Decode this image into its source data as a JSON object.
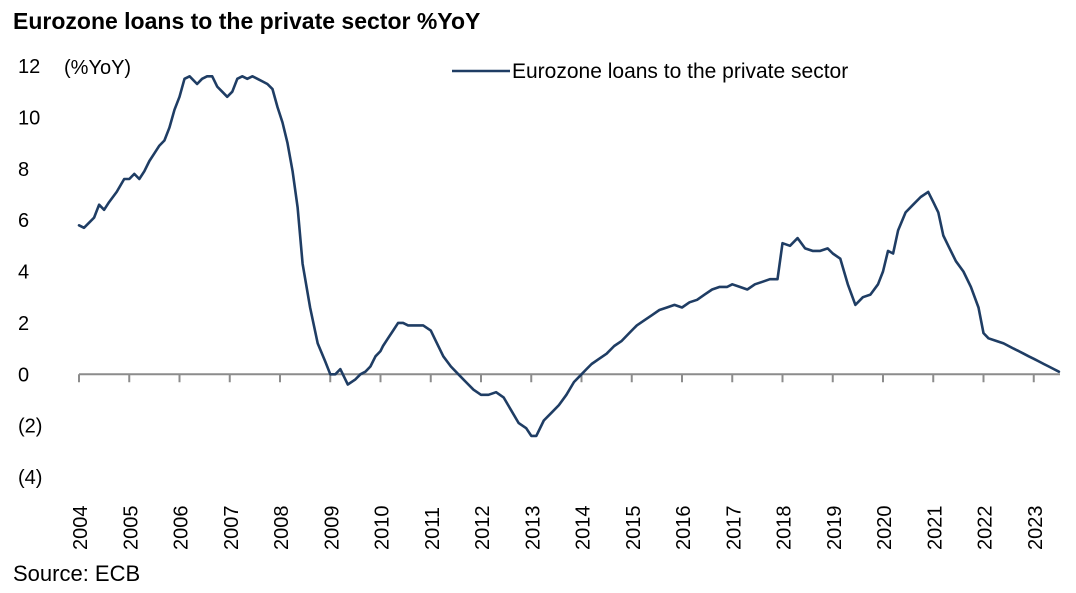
{
  "title": "Eurozone loans to the private sector %YoY",
  "source": "Source: ECB",
  "colors": {
    "series": "#1f3d64",
    "axis": "#8c8c8c"
  },
  "chart_data": {
    "type": "line",
    "title": "Eurozone loans to the private sector %YoY",
    "ylabel": "(%YoY)",
    "xlabel": "",
    "ylim": [
      -4,
      12
    ],
    "y_ticks": [
      12,
      10,
      8,
      6,
      4,
      2,
      0,
      -2,
      -4
    ],
    "y_tick_labels": [
      "12",
      "10",
      "8",
      "6",
      "4",
      "2",
      "0",
      "(2)",
      "(4)"
    ],
    "x_tick_labels": [
      "2004",
      "2005",
      "2006",
      "2007",
      "2008",
      "2009",
      "2010",
      "2011",
      "2012",
      "2013",
      "2014",
      "2015",
      "2016",
      "2017",
      "2018",
      "2019",
      "2020",
      "2021",
      "2022",
      "2023"
    ],
    "xlim": [
      2004.0,
      2023.6
    ],
    "legend_position": "top-right",
    "grid": false,
    "series": [
      {
        "name": "Eurozone loans to the private sector",
        "x": [
          2004.0,
          2004.1,
          2004.2,
          2004.3,
          2004.4,
          2004.5,
          2004.6,
          2004.75,
          2004.9,
          2005.0,
          2005.1,
          2005.2,
          2005.3,
          2005.4,
          2005.5,
          2005.6,
          2005.7,
          2005.8,
          2005.9,
          2006.0,
          2006.1,
          2006.2,
          2006.35,
          2006.45,
          2006.55,
          2006.65,
          2006.75,
          2006.85,
          2006.95,
          2007.05,
          2007.15,
          2007.25,
          2007.35,
          2007.45,
          2007.55,
          2007.65,
          2007.75,
          2007.85,
          2007.95,
          2008.05,
          2008.15,
          2008.25,
          2008.35,
          2008.45,
          2008.6,
          2008.75,
          2008.9,
          2009.0,
          2009.1,
          2009.2,
          2009.35,
          2009.5,
          2009.6,
          2009.7,
          2009.8,
          2009.9,
          2010.0,
          2010.05,
          2010.15,
          2010.25,
          2010.35,
          2010.45,
          2010.55,
          2010.7,
          2010.85,
          2011.0,
          2011.1,
          2011.25,
          2011.4,
          2011.55,
          2011.7,
          2011.85,
          2012.0,
          2012.15,
          2012.3,
          2012.45,
          2012.6,
          2012.75,
          2012.9,
          2013.0,
          2013.1,
          2013.25,
          2013.4,
          2013.55,
          2013.7,
          2013.85,
          2014.0,
          2014.1,
          2014.2,
          2014.35,
          2014.5,
          2014.65,
          2014.8,
          2014.95,
          2015.1,
          2015.25,
          2015.4,
          2015.55,
          2015.7,
          2015.85,
          2016.0,
          2016.15,
          2016.3,
          2016.45,
          2016.6,
          2016.75,
          2016.9,
          2017.0,
          2017.15,
          2017.3,
          2017.45,
          2017.6,
          2017.75,
          2017.9,
          2018.0,
          2018.15,
          2018.3,
          2018.45,
          2018.6,
          2018.75,
          2018.9,
          2019.0,
          2019.15,
          2019.3,
          2019.45,
          2019.6,
          2019.75,
          2019.9,
          2020.0,
          2020.1,
          2020.2,
          2020.3,
          2020.45,
          2020.6,
          2020.75,
          2020.9,
          2021.0,
          2021.1,
          2021.2,
          2021.3,
          2021.45,
          2021.6,
          2021.75,
          2021.9,
          2022.0,
          2022.1,
          2022.25,
          2022.4,
          2022.5,
          2022.6,
          2022.7,
          2022.8,
          2022.9,
          2023.0,
          2023.1,
          2023.2,
          2023.3,
          2023.4,
          2023.5
        ],
        "values": [
          5.8,
          5.7,
          5.9,
          6.1,
          6.6,
          6.4,
          6.7,
          7.1,
          7.6,
          7.6,
          7.8,
          7.6,
          7.9,
          8.3,
          8.6,
          8.9,
          9.1,
          9.6,
          10.3,
          10.8,
          11.5,
          11.6,
          11.3,
          11.5,
          11.6,
          11.6,
          11.2,
          11.0,
          10.8,
          11.0,
          11.5,
          11.6,
          11.5,
          11.6,
          11.5,
          11.4,
          11.3,
          11.1,
          10.4,
          9.8,
          9.0,
          7.9,
          6.5,
          4.3,
          2.6,
          1.2,
          0.5,
          0.0,
          0.0,
          0.2,
          -0.4,
          -0.2,
          0.0,
          0.1,
          0.3,
          0.7,
          0.9,
          1.1,
          1.4,
          1.7,
          2.0,
          2.0,
          1.9,
          1.9,
          1.9,
          1.7,
          1.3,
          0.7,
          0.3,
          0.0,
          -0.3,
          -0.6,
          -0.8,
          -0.8,
          -0.7,
          -0.9,
          -1.4,
          -1.9,
          -2.1,
          -2.4,
          -2.4,
          -1.8,
          -1.5,
          -1.2,
          -0.8,
          -0.3,
          0.0,
          0.2,
          0.4,
          0.6,
          0.8,
          1.1,
          1.3,
          1.6,
          1.9,
          2.1,
          2.3,
          2.5,
          2.6,
          2.7,
          2.6,
          2.8,
          2.9,
          3.1,
          3.3,
          3.4,
          3.4,
          3.5,
          3.4,
          3.3,
          3.5,
          3.6,
          3.7,
          3.7,
          5.1,
          5.0,
          5.3,
          4.9,
          4.8,
          4.8,
          4.9,
          4.7,
          4.5,
          3.5,
          2.7,
          3.0,
          3.1,
          3.5,
          4.0,
          4.8,
          4.7,
          5.6,
          6.3,
          6.6,
          6.9,
          7.1,
          6.7,
          6.3,
          5.4,
          5.0,
          4.4,
          4.0,
          3.4,
          2.6,
          1.6,
          1.4,
          1.3,
          1.2,
          1.1,
          1.0,
          0.9,
          0.8,
          0.7,
          0.6,
          0.5,
          0.4,
          0.3,
          0.2,
          0.1
        ]
      }
    ]
  }
}
